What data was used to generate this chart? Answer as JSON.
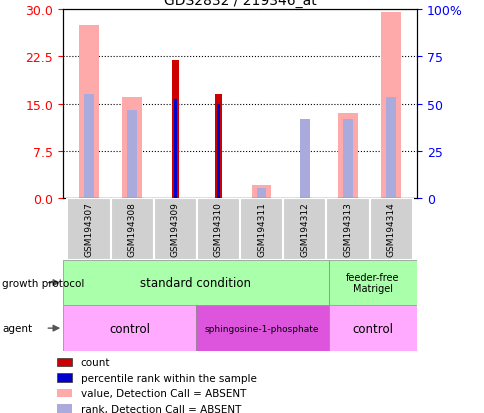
{
  "title": "GDS2832 / 219346_at",
  "samples": [
    "GSM194307",
    "GSM194308",
    "GSM194309",
    "GSM194310",
    "GSM194311",
    "GSM194312",
    "GSM194313",
    "GSM194314"
  ],
  "count_values": [
    0,
    0,
    22.0,
    16.5,
    0,
    0,
    0,
    0
  ],
  "percentile_rank_values": [
    0,
    0,
    15.7,
    15.0,
    0,
    0,
    0,
    0
  ],
  "absent_value_values": [
    27.5,
    16.0,
    0,
    0,
    2.0,
    0,
    13.5,
    29.5
  ],
  "absent_rank_values": [
    16.5,
    14.0,
    0,
    0,
    1.5,
    12.5,
    12.5,
    16.0
  ],
  "left_ylim": [
    0,
    30
  ],
  "left_yticks": [
    0,
    7.5,
    15,
    22.5,
    30
  ],
  "right_tick_labels": [
    "0",
    "25",
    "50",
    "75",
    "100%"
  ],
  "color_count": "#cc0000",
  "color_percentile": "#0000cc",
  "color_absent_value": "#ffaaaa",
  "color_absent_rank": "#aaaadd",
  "legend_items": [
    {
      "label": "count",
      "color": "#cc0000"
    },
    {
      "label": "percentile rank within the sample",
      "color": "#0000cc"
    },
    {
      "label": "value, Detection Call = ABSENT",
      "color": "#ffaaaa"
    },
    {
      "label": "rank, Detection Call = ABSENT",
      "color": "#aaaadd"
    }
  ]
}
